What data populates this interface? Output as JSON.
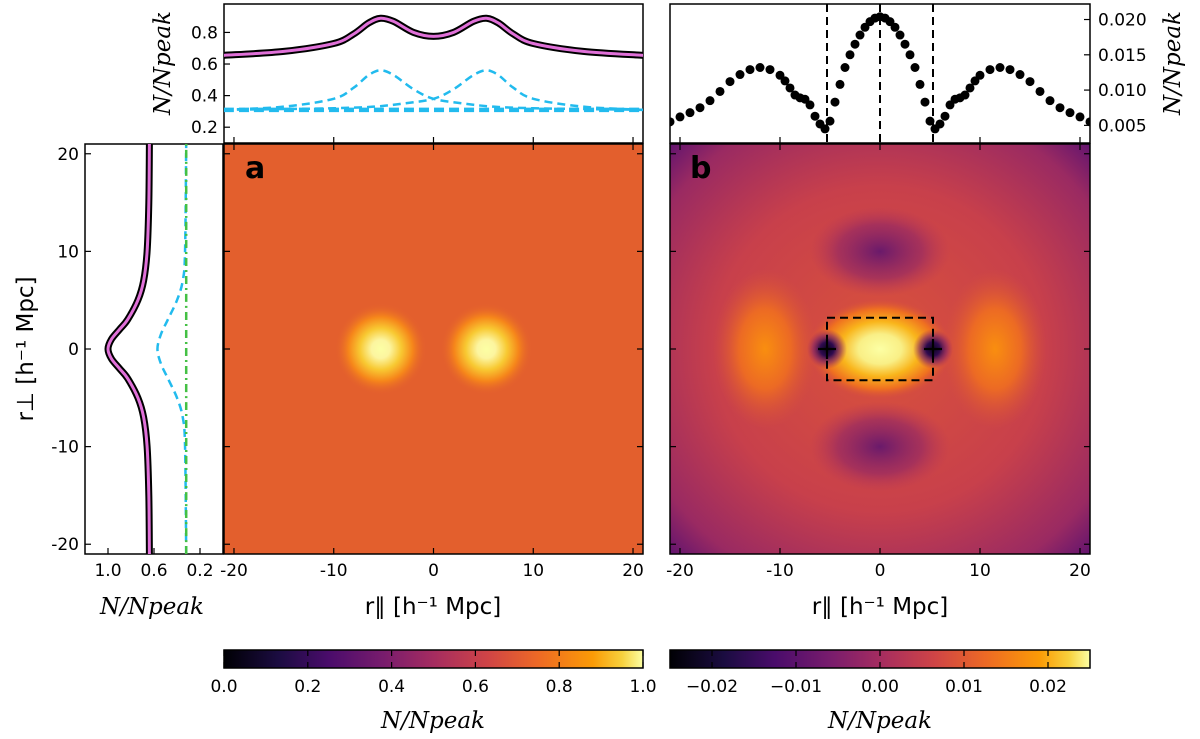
{
  "figure": {
    "panel_a_tag": "a",
    "panel_b_tag": "b",
    "x_axis_label": "r∥ [h⁻¹ Mpc]",
    "y_axis_label": "r⊥ [h⁻¹ Mpc]",
    "n_over_npeak_label": "N/Npeak"
  },
  "chart_data": [
    {
      "id": "panel-a-map",
      "type": "heatmap",
      "title": "a",
      "xlabel": "r∥ [h⁻¹ Mpc]",
      "ylabel": "r⊥ [h⁻¹ Mpc]",
      "xlim": [
        -21,
        21
      ],
      "ylim": [
        -21,
        21
      ],
      "x_ticks": [
        -20,
        -10,
        0,
        10,
        20
      ],
      "y_ticks": [
        -20,
        -10,
        0,
        10,
        20
      ],
      "colormap": "inferno",
      "background_value": 0.65,
      "peaks": [
        {
          "x": -5.3,
          "y": 0,
          "value": 1.0
        },
        {
          "x": 5.3,
          "y": 0,
          "value": 1.0
        }
      ],
      "colorbar": {
        "range": [
          0.0,
          1.0
        ],
        "ticks": [
          "0.0",
          "0.2",
          "0.4",
          "0.6",
          "0.8",
          "1.0"
        ],
        "label": "N/Npeak"
      }
    },
    {
      "id": "panel-b-map",
      "type": "heatmap",
      "title": "b",
      "xlabel": "r∥ [h⁻¹ Mpc]",
      "xlim": [
        -21,
        21
      ],
      "ylim": [
        -21,
        21
      ],
      "x_ticks": [
        -20,
        -10,
        0,
        10,
        20
      ],
      "colormap": "inferno",
      "features": [
        {
          "kind": "central-peak",
          "x": 0,
          "y": 0,
          "value": 0.022
        },
        {
          "kind": "side-lobe",
          "x": -11.5,
          "y": 0,
          "value": 0.012
        },
        {
          "kind": "side-lobe",
          "x": 11.5,
          "y": 0,
          "value": 0.012
        },
        {
          "kind": "minimum",
          "x": -5.3,
          "y": 0,
          "value": -0.024
        },
        {
          "kind": "minimum",
          "x": 5.3,
          "y": 0,
          "value": -0.024
        },
        {
          "kind": "trough",
          "x": 0,
          "y": 10,
          "value": -0.01
        },
        {
          "kind": "trough",
          "x": 0,
          "y": -10,
          "value": -0.01
        }
      ],
      "markers": [
        {
          "x": -5.3,
          "y": 0,
          "symbol": "+"
        },
        {
          "x": 5.3,
          "y": 0,
          "symbol": "+"
        }
      ],
      "dashed_box": {
        "x": [
          -5.3,
          5.3
        ],
        "y": [
          -3.2,
          3.2
        ]
      },
      "colorbar": {
        "range": [
          -0.025,
          0.025
        ],
        "ticks": [
          "−0.02",
          "−0.01",
          "0.00",
          "0.01",
          "0.02"
        ],
        "label": "N/Npeak"
      }
    },
    {
      "id": "top-left-profile",
      "type": "line",
      "xlim": [
        -21,
        21
      ],
      "ylim": [
        0.1,
        0.98
      ],
      "y_ticks": [
        "0.2",
        "0.4",
        "0.6",
        "0.8"
      ],
      "ylabel": "N/Npeak",
      "series": [
        {
          "name": "total (black)",
          "style": "solid-black-thick",
          "x": [
            -21,
            -15,
            -10,
            -8,
            -6.5,
            -5.3,
            -4,
            -2,
            0,
            2,
            4,
            5.3,
            6.5,
            8,
            10,
            15,
            21
          ],
          "values": [
            0.655,
            0.68,
            0.73,
            0.79,
            0.86,
            0.89,
            0.87,
            0.8,
            0.775,
            0.8,
            0.87,
            0.89,
            0.86,
            0.79,
            0.73,
            0.68,
            0.655
          ]
        },
        {
          "name": "model (magenta)",
          "style": "solid-magenta",
          "x": [
            -21,
            -15,
            -10,
            -8,
            -6.5,
            -5.3,
            -4,
            -2,
            0,
            2,
            4,
            5.3,
            6.5,
            8,
            10,
            15,
            21
          ],
          "values": [
            0.655,
            0.68,
            0.73,
            0.79,
            0.86,
            0.89,
            0.87,
            0.8,
            0.775,
            0.8,
            0.87,
            0.89,
            0.86,
            0.79,
            0.73,
            0.68,
            0.655
          ]
        },
        {
          "name": "component 1 (cyan dashed)",
          "style": "dashed-cyan",
          "x": [
            -21,
            -15,
            -10,
            -8,
            -6.5,
            -5.3,
            -4,
            -2,
            0,
            3,
            6,
            10,
            15,
            21
          ],
          "values": [
            0.31,
            0.33,
            0.38,
            0.45,
            0.53,
            0.56,
            0.53,
            0.44,
            0.38,
            0.35,
            0.33,
            0.32,
            0.315,
            0.31
          ]
        },
        {
          "name": "component 2 (cyan dashed)",
          "style": "dashed-cyan",
          "x": [
            -21,
            -15,
            -10,
            -6,
            -3,
            0,
            2,
            4,
            5.3,
            6.5,
            8,
            10,
            15,
            21
          ],
          "values": [
            0.31,
            0.315,
            0.32,
            0.33,
            0.35,
            0.38,
            0.44,
            0.53,
            0.56,
            0.53,
            0.45,
            0.38,
            0.33,
            0.31
          ]
        },
        {
          "name": "baseline (cyan dashed)",
          "style": "dashed-cyan-thick",
          "x": [
            -21,
            21
          ],
          "values": [
            0.31,
            0.31
          ]
        }
      ]
    },
    {
      "id": "top-right-profile",
      "type": "scatter",
      "xlim": [
        -21,
        21
      ],
      "ylim": [
        0.0025,
        0.0222
      ],
      "y_ticks": [
        "0.005",
        "0.010",
        "0.015",
        "0.020"
      ],
      "ylabel": "N/Npeak",
      "vlines": [
        -5.3,
        0,
        5.3
      ],
      "x": [
        -21,
        -20,
        -19,
        -18,
        -17,
        -16,
        -15,
        -14,
        -13,
        -12,
        -11,
        -10,
        -9.5,
        -9,
        -8.5,
        -8,
        -7.5,
        -7,
        -6.5,
        -6,
        -5.5,
        -5,
        -4.5,
        -4,
        -3.5,
        -3,
        -2.5,
        -2,
        -1.5,
        -1,
        -0.5,
        0,
        0.5,
        1,
        1.5,
        2,
        2.5,
        3,
        3.5,
        4,
        4.5,
        5,
        5.5,
        6,
        6.5,
        7,
        7.5,
        8,
        8.5,
        9,
        9.5,
        10,
        11,
        12,
        13,
        14,
        15,
        16,
        17,
        18,
        19,
        20,
        21
      ],
      "values": [
        0.0055,
        0.0062,
        0.0068,
        0.0075,
        0.0085,
        0.0098,
        0.0112,
        0.0122,
        0.0129,
        0.0132,
        0.0129,
        0.0121,
        0.0113,
        0.0103,
        0.0093,
        0.0089,
        0.0087,
        0.0079,
        0.0063,
        0.0052,
        0.0045,
        0.0056,
        0.0083,
        0.0108,
        0.0132,
        0.015,
        0.0165,
        0.0178,
        0.0189,
        0.0197,
        0.0202,
        0.0204,
        0.0202,
        0.0197,
        0.0189,
        0.0178,
        0.0165,
        0.015,
        0.0132,
        0.0108,
        0.0083,
        0.0056,
        0.0045,
        0.0052,
        0.0063,
        0.0079,
        0.0087,
        0.0089,
        0.0093,
        0.0103,
        0.0113,
        0.0121,
        0.0129,
        0.0132,
        0.0129,
        0.0122,
        0.0112,
        0.0098,
        0.0085,
        0.0075,
        0.0068,
        0.0062,
        0.0055
      ]
    },
    {
      "id": "left-profile",
      "type": "line",
      "orientation": "vertical",
      "ylim": [
        -21,
        21
      ],
      "xlim": [
        1.2,
        0.0
      ],
      "x_ticks": [
        "1.0",
        "0.6",
        "0.2"
      ],
      "y_ticks": [
        "20",
        "10",
        "0",
        "-10",
        "-20"
      ],
      "xlabel": "N/Npeak",
      "series": [
        {
          "name": "total (black)",
          "style": "solid-black-thick",
          "r_perp": [
            -21,
            -15,
            -10,
            -7,
            -5,
            -3,
            -2,
            -1,
            0,
            1,
            2,
            3,
            5,
            7,
            10,
            15,
            21
          ],
          "values": [
            0.64,
            0.645,
            0.66,
            0.69,
            0.74,
            0.83,
            0.9,
            0.97,
            1.0,
            0.97,
            0.9,
            0.83,
            0.74,
            0.69,
            0.66,
            0.645,
            0.64
          ]
        },
        {
          "name": "model (magenta)",
          "style": "solid-magenta",
          "r_perp": [
            -21,
            -15,
            -10,
            -7,
            -5,
            -3,
            -2,
            -1,
            0,
            1,
            2,
            3,
            5,
            7,
            10,
            15,
            21
          ],
          "values": [
            0.64,
            0.645,
            0.66,
            0.69,
            0.74,
            0.83,
            0.9,
            0.97,
            1.0,
            0.97,
            0.9,
            0.83,
            0.74,
            0.69,
            0.66,
            0.645,
            0.64
          ]
        },
        {
          "name": "component (cyan dashed)",
          "style": "dashed-cyan",
          "r_perp": [
            -21,
            -10,
            -7,
            -5,
            -3,
            -1.5,
            0,
            1.5,
            3,
            5,
            7,
            10,
            21
          ],
          "values": [
            0.32,
            0.33,
            0.35,
            0.4,
            0.48,
            0.54,
            0.57,
            0.54,
            0.48,
            0.4,
            0.35,
            0.33,
            0.32
          ]
        },
        {
          "name": "baseline (green dash-dot)",
          "style": "dashdot-green",
          "r_perp": [
            -21,
            21
          ],
          "values": [
            0.32,
            0.32
          ]
        }
      ]
    }
  ]
}
